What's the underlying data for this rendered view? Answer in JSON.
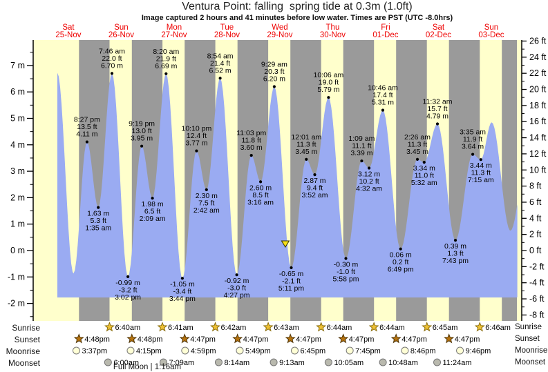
{
  "header": {
    "title": "Ventura Point: falling  spring tide at 0.3m (1.0ft)",
    "subtitle": "Image captured 2 hours and 41 minutes before low water. Times are PST (UTC -8.0hrs)"
  },
  "days": [
    {
      "dow": "Sat",
      "date": "25-Nov"
    },
    {
      "dow": "Sun",
      "date": "26-Nov"
    },
    {
      "dow": "Mon",
      "date": "27-Nov"
    },
    {
      "dow": "Tue",
      "date": "28-Nov"
    },
    {
      "dow": "Wed",
      "date": "29-Nov"
    },
    {
      "dow": "Thu",
      "date": "30-Nov"
    },
    {
      "dow": "Fri",
      "date": "01-Dec"
    },
    {
      "dow": "Sat",
      "date": "02-Dec"
    },
    {
      "dow": "Sun",
      "date": "03-Dec"
    }
  ],
  "colors": {
    "day_band": "#ffffcc",
    "night_band": "#9a9a9a",
    "tide_fill": "#9aabf2",
    "day_label": "#ee0000",
    "axis": "#000000",
    "text": "#000000",
    "sunrise_star": "#eec135",
    "sunrise_star_stroke": "#8a6d0a",
    "sunset_star": "#b5720e",
    "sunset_star_stroke": "#4d3305",
    "moonrise_circle": "#ffffd6",
    "moonset_circle": "#b9b9ae",
    "circle_stroke": "#777777",
    "marker_fill": "#f7e018",
    "marker_stroke": "#333300"
  },
  "chart_data": {
    "type": "area",
    "title": "Ventura Point: falling  spring tide at 0.3m (1.0ft)",
    "ylabel_left": "m",
    "ylabel_right": "ft",
    "y_axis_left_values": [
      7,
      6,
      5,
      4,
      3,
      2,
      1,
      0,
      -1,
      -2
    ],
    "y_axis_right_values": [
      26,
      24,
      22,
      20,
      18,
      16,
      14,
      12,
      10,
      8,
      6,
      4,
      2,
      0,
      -2,
      -4,
      -6,
      -8
    ],
    "ylim_m": [
      -2.6,
      8.0
    ],
    "grid": false,
    "tide_events": [
      {
        "day": 0,
        "t": "07:00",
        "h": 6.72,
        "pos": "none"
      },
      {
        "day": 0,
        "t": "14:20",
        "h": -0.87,
        "pos": "none"
      },
      {
        "day": 0,
        "t": "20:27",
        "time": "8:27 pm",
        "ft": "13.5 ft",
        "m": "4.11 m",
        "h": 4.11,
        "pos": "above"
      },
      {
        "day": 1,
        "t": "01:35",
        "time": "1:35 am",
        "ft": "5.3 ft",
        "m": "1.63 m",
        "h": 1.63,
        "pos": "below"
      },
      {
        "day": 1,
        "t": "07:46",
        "time": "7:46 am",
        "ft": "22.0 ft",
        "m": "6.70 m",
        "h": 6.7,
        "pos": "above"
      },
      {
        "day": 1,
        "t": "15:02",
        "time": "3:02 pm",
        "ft": "-3.2 ft",
        "m": "-0.99 m",
        "h": -0.99,
        "pos": "below"
      },
      {
        "day": 1,
        "t": "21:19",
        "time": "9:19 pm",
        "ft": "13.0 ft",
        "m": "3.95 m",
        "h": 3.95,
        "pos": "above"
      },
      {
        "day": 2,
        "t": "02:09",
        "time": "2:09 am",
        "ft": "6.5 ft",
        "m": "1.98 m",
        "h": 1.98,
        "pos": "below"
      },
      {
        "day": 2,
        "t": "08:20",
        "time": "8:20 am",
        "ft": "21.9 ft",
        "m": "6.69 m",
        "h": 6.69,
        "pos": "above"
      },
      {
        "day": 2,
        "t": "15:44",
        "time": "3:44 pm",
        "ft": "-3.4 ft",
        "m": "-1.05 m",
        "h": -1.05,
        "pos": "below"
      },
      {
        "day": 2,
        "t": "22:10",
        "time": "10:10 pm",
        "ft": "12.4 ft",
        "m": "3.77 m",
        "h": 3.77,
        "pos": "above"
      },
      {
        "day": 3,
        "t": "02:42",
        "time": "2:42 am",
        "ft": "7.5 ft",
        "m": "2.30 m",
        "h": 2.3,
        "pos": "below"
      },
      {
        "day": 3,
        "t": "08:54",
        "time": "8:54 am",
        "ft": "21.4 ft",
        "m": "6.52 m",
        "h": 6.52,
        "pos": "above"
      },
      {
        "day": 3,
        "t": "16:27",
        "time": "4:27 pm",
        "ft": "-3.0 ft",
        "m": "-0.92 m",
        "h": -0.92,
        "pos": "below"
      },
      {
        "day": 3,
        "t": "23:03",
        "time": "11:03 pm",
        "ft": "11.8 ft",
        "m": "3.60 m",
        "h": 3.6,
        "pos": "above"
      },
      {
        "day": 4,
        "t": "03:16",
        "time": "3:16 am",
        "ft": "8.5 ft",
        "m": "2.60 m",
        "h": 2.6,
        "pos": "below"
      },
      {
        "day": 4,
        "t": "09:29",
        "time": "9:29 am",
        "ft": "20.3 ft",
        "m": "6.20 m",
        "h": 6.2,
        "pos": "above"
      },
      {
        "day": 4,
        "t": "17:11",
        "time": "5:11 pm",
        "ft": "-2.1 ft",
        "m": "-0.65 m",
        "h": -0.65,
        "pos": "below"
      },
      {
        "day": 5,
        "t": "00:01",
        "time": "12:01 am",
        "ft": "11.3 ft",
        "m": "3.45 m",
        "h": 3.45,
        "pos": "above"
      },
      {
        "day": 5,
        "t": "03:52",
        "time": "3:52 am",
        "ft": "9.4 ft",
        "m": "2.87 m",
        "h": 2.87,
        "pos": "below"
      },
      {
        "day": 5,
        "t": "10:06",
        "time": "10:06 am",
        "ft": "19.0 ft",
        "m": "5.79 m",
        "h": 5.79,
        "pos": "above"
      },
      {
        "day": 5,
        "t": "17:58",
        "time": "5:58 pm",
        "ft": "-1.0 ft",
        "m": "-0.30 m",
        "h": -0.3,
        "pos": "below"
      },
      {
        "day": 6,
        "t": "01:09",
        "time": "1:09 am",
        "ft": "11.1 ft",
        "m": "3.39 m",
        "h": 3.39,
        "pos": "above"
      },
      {
        "day": 6,
        "t": "04:32",
        "time": "4:32 am",
        "ft": "10.2 ft",
        "m": "3.12 m",
        "h": 3.12,
        "pos": "below"
      },
      {
        "day": 6,
        "t": "10:46",
        "time": "10:46 am",
        "ft": "17.4 ft",
        "m": "5.31 m",
        "h": 5.31,
        "pos": "above"
      },
      {
        "day": 6,
        "t": "18:49",
        "time": "6:49 pm",
        "ft": "0.2 ft",
        "m": "0.06 m",
        "h": 0.06,
        "pos": "below"
      },
      {
        "day": 7,
        "t": "02:26",
        "time": "2:26 am",
        "ft": "11.3 ft",
        "m": "3.45 m",
        "h": 3.45,
        "pos": "above"
      },
      {
        "day": 7,
        "t": "05:32",
        "time": "5:32 am",
        "ft": "11.0 ft",
        "m": "3.34 m",
        "h": 3.34,
        "pos": "below"
      },
      {
        "day": 7,
        "t": "11:32",
        "time": "11:32 am",
        "ft": "15.7 ft",
        "m": "4.79 m",
        "h": 4.79,
        "pos": "above"
      },
      {
        "day": 7,
        "t": "19:43",
        "time": "7:43 pm",
        "ft": "1.3 ft",
        "m": "0.39 m",
        "h": 0.39,
        "pos": "below"
      },
      {
        "day": 8,
        "t": "03:35",
        "time": "3:35 am",
        "ft": "11.9 ft",
        "m": "3.64 m",
        "h": 3.64,
        "pos": "above"
      },
      {
        "day": 8,
        "t": "07:15",
        "time": "7:15 am",
        "ft": "11.3 ft",
        "m": "3.44 m",
        "h": 3.44,
        "pos": "below"
      },
      {
        "day": 8,
        "t": "12:10",
        "h": 4.85,
        "pos": "none"
      },
      {
        "day": 8,
        "t": "20:40",
        "h": 0.75,
        "pos": "none"
      },
      {
        "day": 9,
        "t": "04:50",
        "h": 3.9,
        "pos": "none"
      }
    ],
    "capture_marker": {
      "day": 4,
      "t": "14:30"
    },
    "final_night_start": {
      "day": 8,
      "t": "16:47"
    }
  },
  "sun_moon": {
    "full_moon": "Full Moon | 1:16am",
    "rows": [
      {
        "label": "Sunrise",
        "icon": "sunrise-star",
        "times": [
          {
            "day": 1,
            "t": "06:40",
            "disp": "6:40am"
          },
          {
            "day": 2,
            "t": "06:41",
            "disp": "6:41am"
          },
          {
            "day": 3,
            "t": "06:42",
            "disp": "6:42am"
          },
          {
            "day": 4,
            "t": "06:43",
            "disp": "6:43am"
          },
          {
            "day": 5,
            "t": "06:44",
            "disp": "6:44am"
          },
          {
            "day": 6,
            "t": "06:44",
            "disp": "6:44am"
          },
          {
            "day": 7,
            "t": "06:45",
            "disp": "6:45am"
          },
          {
            "day": 8,
            "t": "06:46",
            "disp": "6:46am"
          }
        ]
      },
      {
        "label": "Sunset",
        "icon": "sunset-star",
        "times": [
          {
            "day": 0,
            "t": "16:48",
            "disp": "4:48pm"
          },
          {
            "day": 1,
            "t": "16:48",
            "disp": "4:48pm"
          },
          {
            "day": 2,
            "t": "16:47",
            "disp": "4:47pm"
          },
          {
            "day": 3,
            "t": "16:47",
            "disp": "4:47pm"
          },
          {
            "day": 4,
            "t": "16:47",
            "disp": "4:47pm"
          },
          {
            "day": 5,
            "t": "16:47",
            "disp": "4:47pm"
          },
          {
            "day": 6,
            "t": "16:47",
            "disp": "4:47pm"
          },
          {
            "day": 7,
            "t": "16:47",
            "disp": "4:47pm"
          }
        ]
      },
      {
        "label": "Moonrise",
        "icon": "moonrise-circle",
        "times": [
          {
            "day": 0,
            "t": "15:37",
            "disp": "3:37pm"
          },
          {
            "day": 1,
            "t": "16:15",
            "disp": "4:15pm"
          },
          {
            "day": 2,
            "t": "16:59",
            "disp": "4:59pm"
          },
          {
            "day": 3,
            "t": "17:49",
            "disp": "5:49pm"
          },
          {
            "day": 4,
            "t": "18:45",
            "disp": "6:45pm"
          },
          {
            "day": 5,
            "t": "19:45",
            "disp": "7:45pm"
          },
          {
            "day": 6,
            "t": "20:46",
            "disp": "8:46pm"
          },
          {
            "day": 7,
            "t": "21:46",
            "disp": "9:46pm"
          }
        ]
      },
      {
        "label": "Moonset",
        "icon": "moonset-circle",
        "times": [
          {
            "day": 1,
            "t": "06:00",
            "disp": "6:00am"
          },
          {
            "day": 2,
            "t": "07:09",
            "disp": "7:09am"
          },
          {
            "day": 3,
            "t": "08:14",
            "disp": "8:14am"
          },
          {
            "day": 4,
            "t": "09:13",
            "disp": "9:13am"
          },
          {
            "day": 5,
            "t": "10:05",
            "disp": "10:05am"
          },
          {
            "day": 6,
            "t": "10:48",
            "disp": "10:48am"
          },
          {
            "day": 7,
            "t": "11:24",
            "disp": "11:24am"
          }
        ]
      }
    ]
  }
}
